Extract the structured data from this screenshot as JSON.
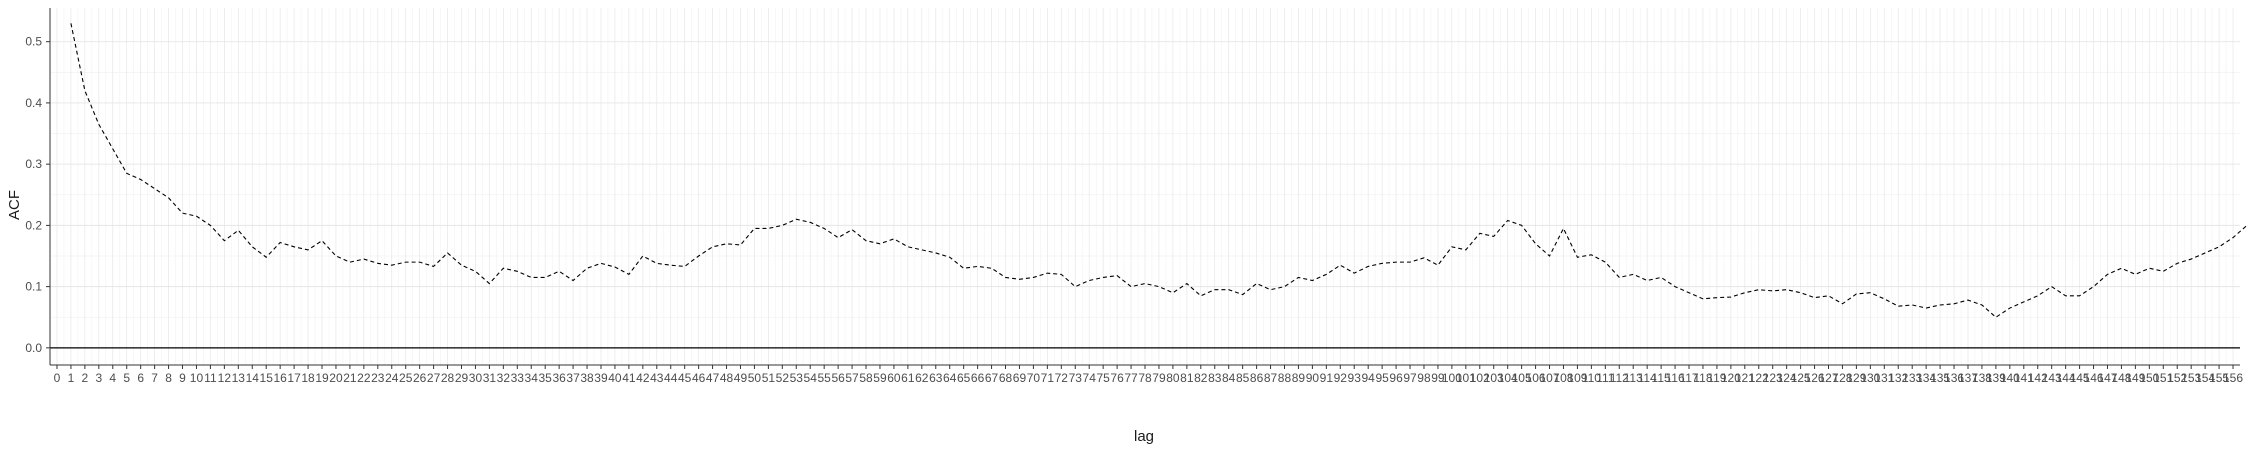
{
  "chart_data": {
    "type": "line",
    "title": "",
    "xlabel": "lag",
    "ylabel": "ACF",
    "xlim": [
      -0.5,
      156.5
    ],
    "ylim": [
      -0.028,
      0.555
    ],
    "yticks": [
      0.0,
      0.1,
      0.2,
      0.3,
      0.4,
      0.5
    ],
    "ytick_labels": [
      "0.0",
      "0.1",
      "0.2",
      "0.3",
      "0.4",
      "0.5"
    ],
    "xticks": [
      0,
      1,
      2,
      3,
      4,
      5,
      6,
      7,
      8,
      9,
      10,
      11,
      12,
      13,
      14,
      15,
      16,
      17,
      18,
      19,
      20,
      21,
      22,
      23,
      24,
      25,
      26,
      27,
      28,
      29,
      30,
      31,
      32,
      33,
      34,
      35,
      36,
      37,
      38,
      39,
      40,
      41,
      42,
      43,
      44,
      45,
      46,
      47,
      48,
      49,
      50,
      51,
      52,
      53,
      54,
      55,
      56,
      57,
      58,
      59,
      60,
      61,
      62,
      63,
      64,
      65,
      66,
      67,
      68,
      69,
      70,
      71,
      72,
      73,
      74,
      75,
      76,
      77,
      78,
      79,
      80,
      81,
      82,
      83,
      84,
      85,
      86,
      87,
      88,
      89,
      90,
      91,
      92,
      93,
      94,
      95,
      96,
      97,
      98,
      99,
      100,
      101,
      102,
      103,
      104,
      105,
      106,
      107,
      108,
      109,
      110,
      111,
      112,
      113,
      114,
      115,
      116,
      117,
      118,
      119,
      120,
      121,
      122,
      123,
      124,
      125,
      126,
      127,
      128,
      129,
      130,
      131,
      132,
      133,
      134,
      135,
      136,
      137,
      138,
      139,
      140,
      141,
      142,
      143,
      144,
      145,
      146,
      147,
      148,
      149,
      150,
      151,
      152,
      153,
      154,
      155,
      156
    ],
    "grid": true,
    "line_style": "dashed",
    "line_color": "#000000",
    "reference_line": 0,
    "series": [
      {
        "values": [
          0.53,
          0.42,
          0.365,
          0.325,
          0.285,
          0.275,
          0.26,
          0.245,
          0.22,
          0.215,
          0.2,
          0.175,
          0.192,
          0.165,
          0.148,
          0.172,
          0.165,
          0.16,
          0.175,
          0.15,
          0.14,
          0.145,
          0.138,
          0.135,
          0.14,
          0.14,
          0.133,
          0.155,
          0.135,
          0.125,
          0.105,
          0.13,
          0.125,
          0.115,
          0.115,
          0.125,
          0.11,
          0.13,
          0.138,
          0.132,
          0.12,
          0.15,
          0.138,
          0.135,
          0.133,
          0.15,
          0.165,
          0.17,
          0.168,
          0.195,
          0.195,
          0.2,
          0.21,
          0.205,
          0.195,
          0.18,
          0.193,
          0.175,
          0.17,
          0.178,
          0.165,
          0.16,
          0.155,
          0.148,
          0.13,
          0.133,
          0.13,
          0.115,
          0.112,
          0.115,
          0.122,
          0.12,
          0.1,
          0.11,
          0.115,
          0.118,
          0.1,
          0.105,
          0.1,
          0.09,
          0.105,
          0.085,
          0.095,
          0.095,
          0.087,
          0.105,
          0.095,
          0.1,
          0.115,
          0.11,
          0.12,
          0.135,
          0.122,
          0.133,
          0.138,
          0.14,
          0.14,
          0.147,
          0.135,
          0.165,
          0.16,
          0.187,
          0.182,
          0.208,
          0.2,
          0.17,
          0.15,
          0.195,
          0.148,
          0.152,
          0.14,
          0.115,
          0.12,
          0.11,
          0.115,
          0.1,
          0.09,
          0.08,
          0.082,
          0.083,
          0.09,
          0.095,
          0.093,
          0.095,
          0.09,
          0.082,
          0.085,
          0.072,
          0.088,
          0.09,
          0.08,
          0.068,
          0.07,
          0.065,
          0.07,
          0.072,
          0.078,
          0.07,
          0.05,
          0.065,
          0.075,
          0.085,
          0.1,
          0.085,
          0.085,
          0.1,
          0.12,
          0.13,
          0.12,
          0.13,
          0.125,
          0.138,
          0.145,
          0.155,
          0.165,
          0.18,
          0.2
        ]
      }
    ]
  }
}
